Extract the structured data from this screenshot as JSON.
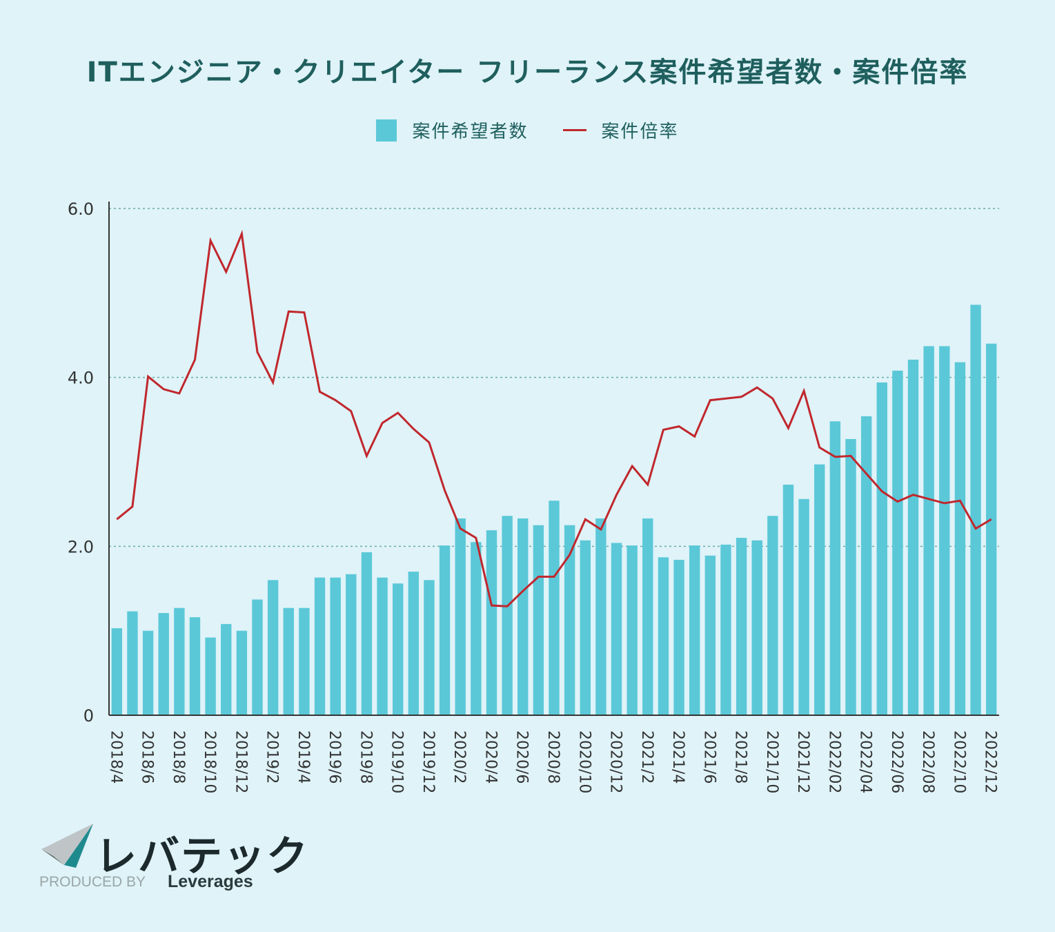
{
  "header": {
    "title": "ITエンジニア・クリエイター フリーランス案件希望者数・案件倍率"
  },
  "legend": {
    "bar_label": "案件希望者数",
    "line_label": "案件倍率"
  },
  "colors": {
    "bar": "#5bc8d8",
    "line": "#c0272d",
    "axis": "#333333",
    "grid": "#6aa9a9",
    "title": "#1f5f5e"
  },
  "chart_data": {
    "type": "bar+line",
    "title": "ITエンジニア・クリエイター フリーランス案件希望者数・案件倍率",
    "ylim": [
      0,
      6.0
    ],
    "yticks": [
      {
        "value": 0,
        "label": "0"
      },
      {
        "value": 2.0,
        "label": "2.0"
      },
      {
        "value": 4.0,
        "label": "4.0"
      },
      {
        "value": 6.0,
        "label": "6.0"
      }
    ],
    "grid": true,
    "legend_position": "top-center",
    "categories": [
      "2018/4",
      "2018/5",
      "2018/6",
      "2018/7",
      "2018/8",
      "2018/9",
      "2018/10",
      "2018/11",
      "2018/12",
      "2019/1",
      "2019/2",
      "2019/3",
      "2019/4",
      "2019/5",
      "2019/6",
      "2019/7",
      "2019/8",
      "2019/9",
      "2019/10",
      "2019/11",
      "2019/12",
      "2020/1",
      "2020/2",
      "2020/3",
      "2020/4",
      "2020/5",
      "2020/6",
      "2020/7",
      "2020/8",
      "2020/9",
      "2020/10",
      "2020/11",
      "2020/12",
      "2021/1",
      "2021/2",
      "2021/3",
      "2021/4",
      "2021/5",
      "2021/6",
      "2021/7",
      "2021/8",
      "2021/9",
      "2021/10",
      "2021/11",
      "2021/12",
      "2022/01",
      "2022/02",
      "2022/03",
      "2022/04",
      "2022/05",
      "2022/06",
      "2022/07",
      "2022/08",
      "2022/09",
      "2022/10",
      "2022/11",
      "2022/12"
    ],
    "xtick_labels": [
      "2018/4",
      "2018/6",
      "2018/8",
      "2018/10",
      "2018/12",
      "2019/2",
      "2019/4",
      "2019/6",
      "2019/8",
      "2019/10",
      "2019/12",
      "2020/2",
      "2020/4",
      "2020/6",
      "2020/8",
      "2020/10",
      "2020/12",
      "2021/2",
      "2021/4",
      "2021/6",
      "2021/8",
      "2021/10",
      "2021/12",
      "2022/02",
      "2022/04",
      "2022/06",
      "2022/08",
      "2022/10",
      "2022/12"
    ],
    "series": [
      {
        "name": "案件希望者数",
        "type": "bar",
        "values": [
          1.03,
          1.23,
          1.0,
          1.21,
          1.27,
          1.16,
          0.92,
          1.08,
          1.0,
          1.37,
          1.6,
          1.27,
          1.27,
          1.63,
          1.63,
          1.67,
          1.93,
          1.63,
          1.56,
          1.7,
          1.6,
          2.01,
          2.33,
          2.05,
          2.19,
          2.36,
          2.33,
          2.25,
          2.54,
          2.25,
          2.07,
          2.33,
          2.04,
          2.01,
          2.33,
          1.87,
          1.84,
          2.01,
          1.89,
          2.02,
          2.1,
          2.07,
          2.36,
          2.73,
          2.56,
          2.97,
          3.48,
          3.27,
          3.54,
          3.94,
          4.08,
          4.21,
          4.37,
          4.37,
          4.18,
          4.86,
          4.4
        ]
      },
      {
        "name": "案件倍率",
        "type": "line",
        "values": [
          2.32,
          2.47,
          4.01,
          3.86,
          3.81,
          4.21,
          5.62,
          5.25,
          5.7,
          4.3,
          3.94,
          4.78,
          4.77,
          3.83,
          3.73,
          3.6,
          3.07,
          3.46,
          3.58,
          3.39,
          3.23,
          2.66,
          2.21,
          2.1,
          1.3,
          1.29,
          1.47,
          1.64,
          1.64,
          1.9,
          2.32,
          2.2,
          2.61,
          2.95,
          2.73,
          3.38,
          3.42,
          3.3,
          3.73,
          3.75,
          3.77,
          3.88,
          3.75,
          3.4,
          3.84,
          3.17,
          3.06,
          3.07,
          2.86,
          2.65,
          2.53,
          2.61,
          2.56,
          2.51,
          2.54,
          2.21,
          2.32
        ]
      }
    ]
  },
  "footer": {
    "brand_name": "レバテック",
    "produced_by": "PRODUCED BY",
    "produced_brand": "Leverages"
  }
}
